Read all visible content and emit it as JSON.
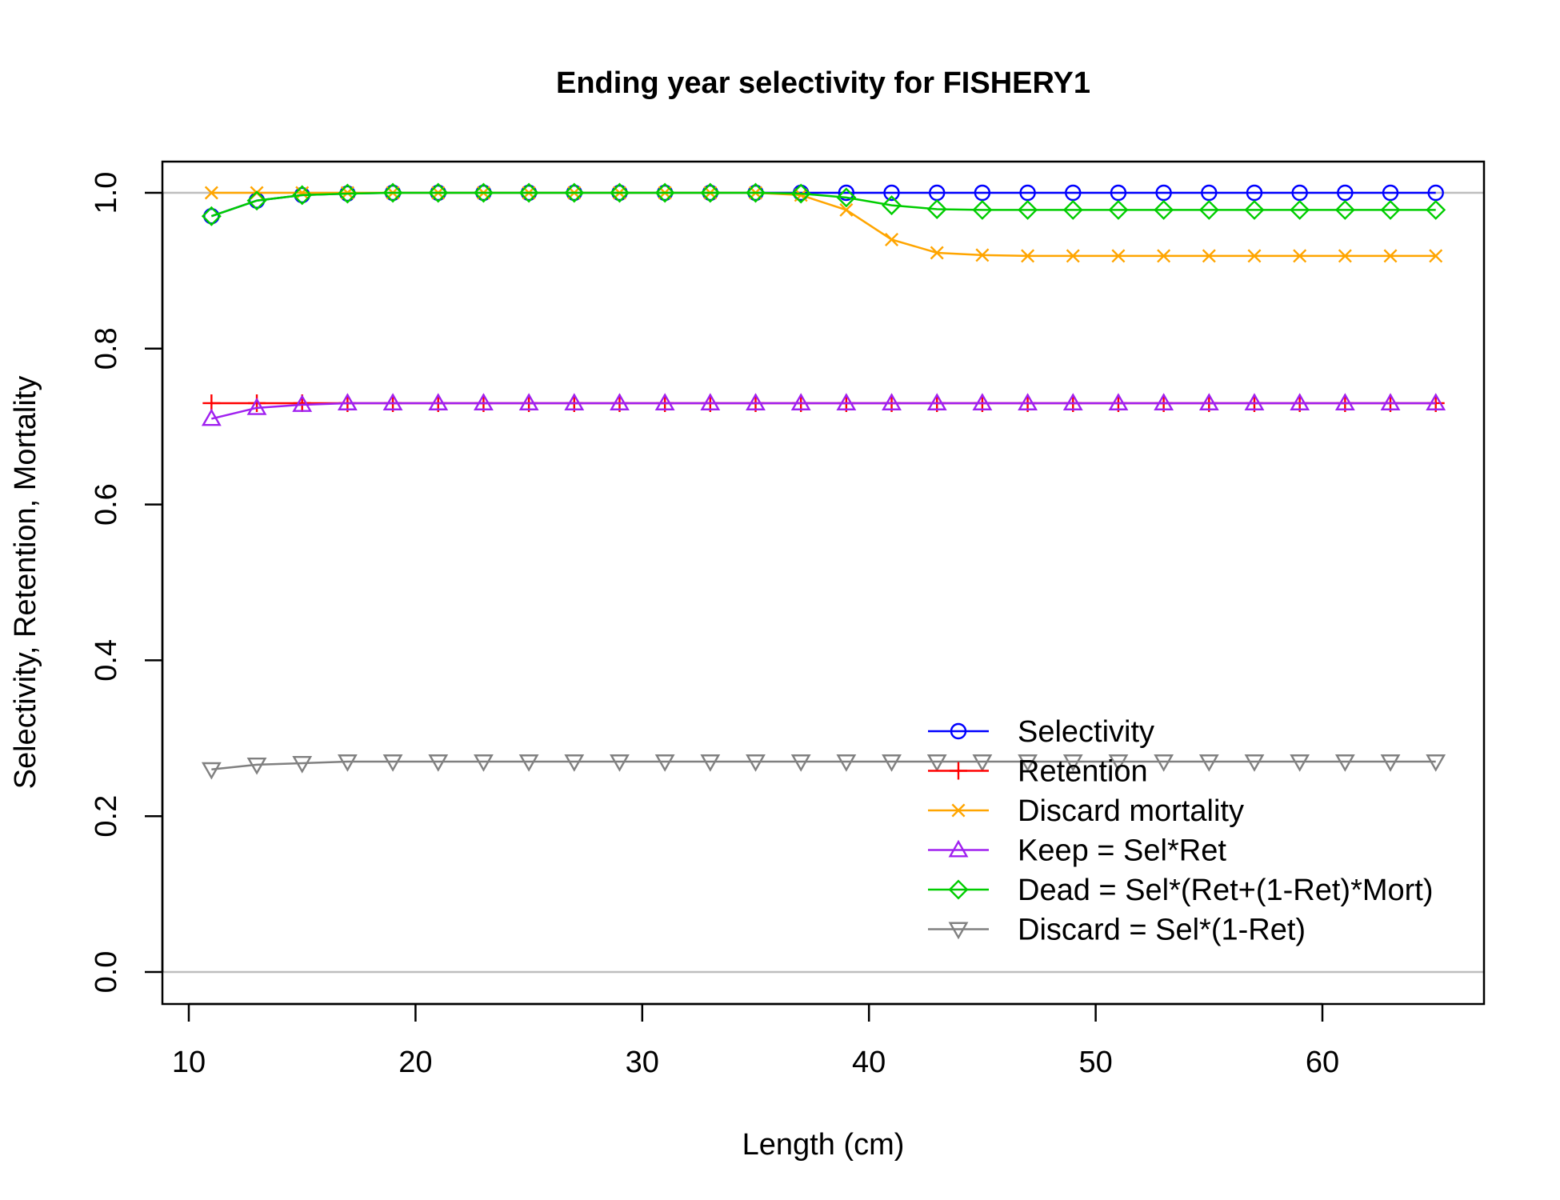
{
  "chart_data": {
    "type": "line",
    "title": "Ending year selectivity for FISHERY1",
    "xlabel": "Length (cm)",
    "ylabel": "Selectivity, Retention, Mortality",
    "xlim": [
      10,
      66
    ],
    "ylim": [
      0,
      1
    ],
    "xticks": [
      10,
      20,
      30,
      40,
      50,
      60
    ],
    "yticks": [
      "0.0",
      "0.2",
      "0.4",
      "0.6",
      "0.8",
      "1.0"
    ],
    "reference_lines": [
      0,
      1
    ],
    "legend_position": "bottom-right",
    "x": [
      11,
      13,
      15,
      17,
      19,
      21,
      23,
      25,
      27,
      29,
      31,
      33,
      35,
      37,
      39,
      41,
      43,
      45,
      47,
      49,
      51,
      53,
      55,
      57,
      59,
      61,
      63,
      65
    ],
    "series": [
      {
        "name": "Selectivity",
        "color": "#0000ff",
        "marker": "circle",
        "values": [
          0.97,
          0.99,
          0.997,
          0.999,
          1,
          1,
          1,
          1,
          1,
          1,
          1,
          1,
          1,
          1,
          1,
          1,
          1,
          1,
          1,
          1,
          1,
          1,
          1,
          1,
          1,
          1,
          1,
          1
        ]
      },
      {
        "name": "Retention",
        "color": "#ff0000",
        "marker": "plus",
        "values": [
          0.73,
          0.73,
          0.73,
          0.73,
          0.73,
          0.73,
          0.73,
          0.73,
          0.73,
          0.73,
          0.73,
          0.73,
          0.73,
          0.73,
          0.73,
          0.73,
          0.73,
          0.73,
          0.73,
          0.73,
          0.73,
          0.73,
          0.73,
          0.73,
          0.73,
          0.73,
          0.73,
          0.73
        ]
      },
      {
        "name": "Discard mortality",
        "color": "#ffa500",
        "marker": "x",
        "values": [
          1,
          1,
          1,
          1,
          1,
          1,
          1,
          1,
          1,
          1,
          1,
          1,
          1,
          0.997,
          0.978,
          0.94,
          0.923,
          0.92,
          0.919,
          0.919,
          0.919,
          0.919,
          0.919,
          0.919,
          0.919,
          0.919,
          0.919,
          0.919
        ]
      },
      {
        "name": "Keep = Sel*Ret",
        "color": "#a020f0",
        "marker": "triangle-up",
        "values": [
          0.71,
          0.724,
          0.728,
          0.73,
          0.73,
          0.73,
          0.73,
          0.73,
          0.73,
          0.73,
          0.73,
          0.73,
          0.73,
          0.73,
          0.73,
          0.73,
          0.73,
          0.73,
          0.73,
          0.73,
          0.73,
          0.73,
          0.73,
          0.73,
          0.73,
          0.73,
          0.73,
          0.73
        ]
      },
      {
        "name": "Dead = Sel*(Ret+(1-Ret)*Mort)",
        "color": "#00cd00",
        "marker": "diamond",
        "values": [
          0.97,
          0.99,
          0.997,
          0.999,
          1,
          1,
          1,
          1,
          1,
          1,
          1,
          1,
          1,
          0.999,
          0.994,
          0.984,
          0.979,
          0.978,
          0.978,
          0.978,
          0.978,
          0.978,
          0.978,
          0.978,
          0.978,
          0.978,
          0.978,
          0.978
        ]
      },
      {
        "name": "Discard = Sel*(1-Ret)",
        "color": "#808080",
        "marker": "triangle-down",
        "values": [
          0.26,
          0.266,
          0.268,
          0.27,
          0.27,
          0.27,
          0.27,
          0.27,
          0.27,
          0.27,
          0.27,
          0.27,
          0.27,
          0.27,
          0.27,
          0.27,
          0.27,
          0.27,
          0.27,
          0.27,
          0.27,
          0.27,
          0.27,
          0.27,
          0.27,
          0.27,
          0.27,
          0.27
        ]
      }
    ]
  }
}
